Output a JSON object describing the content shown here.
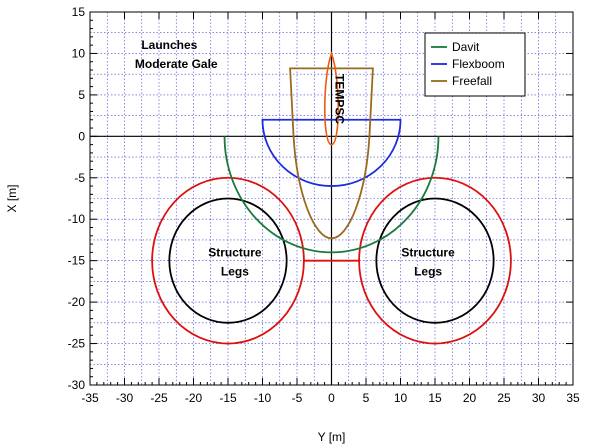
{
  "chart_data": {
    "type": "line",
    "title": "",
    "xlabel": "Y [m]",
    "ylabel": "X [m]",
    "xlim": [
      -35,
      35
    ],
    "ylim": [
      -30,
      15
    ],
    "xticks": [
      -35,
      -30,
      -25,
      -20,
      -15,
      -10,
      -5,
      0,
      5,
      10,
      15,
      20,
      25,
      30,
      35
    ],
    "yticks": [
      15,
      10,
      5,
      0,
      -5,
      -10,
      -15,
      -20,
      -25,
      -30
    ],
    "grid": true,
    "legend_position": "top-right",
    "annotations": {
      "launches": "Launches",
      "gale": "Moderate Gale",
      "tempsc": "TEMPSC",
      "legs_left_1": "Structure",
      "legs_left_2": "Legs",
      "legs_right_1": "Structure",
      "legs_right_2": "Legs"
    },
    "series": [
      {
        "name": "Davit",
        "color": "#1a7a3c",
        "shape": "half-ellipse",
        "cx": 0,
        "cy": 0,
        "rx": 15.5,
        "ry": 14,
        "top": 0
      },
      {
        "name": "Flexboom",
        "color": "#1a2ee0",
        "shape": "half-ellipse",
        "cx": 0,
        "cy": 2,
        "rx": 10,
        "ry": 8,
        "top": 2
      },
      {
        "name": "Freefall",
        "color": "#9a6a1e",
        "shape": "vessel",
        "top": 8.2,
        "halfwidth": 5.5,
        "bottom": -12.3
      }
    ],
    "structures": {
      "legs": [
        {
          "cx": -15,
          "cy": -15,
          "inner_rx": 8.5,
          "inner_ry": 7.5,
          "outer_rx": 11,
          "outer_ry": 10
        },
        {
          "cx": 15,
          "cy": -15,
          "inner_rx": 8.5,
          "inner_ry": 7.5,
          "outer_rx": 11,
          "outer_ry": 10
        }
      ],
      "connector": {
        "x1": -4,
        "x2": 4,
        "y": -15
      },
      "tempsc": {
        "cx": 0,
        "top": 10,
        "bottom": -1,
        "halfwidth": 1.3
      },
      "colors": {
        "inner": "#000000",
        "outer": "#dd1010",
        "tempsc": "#ee5a10",
        "grid": "#0000c8"
      }
    }
  }
}
